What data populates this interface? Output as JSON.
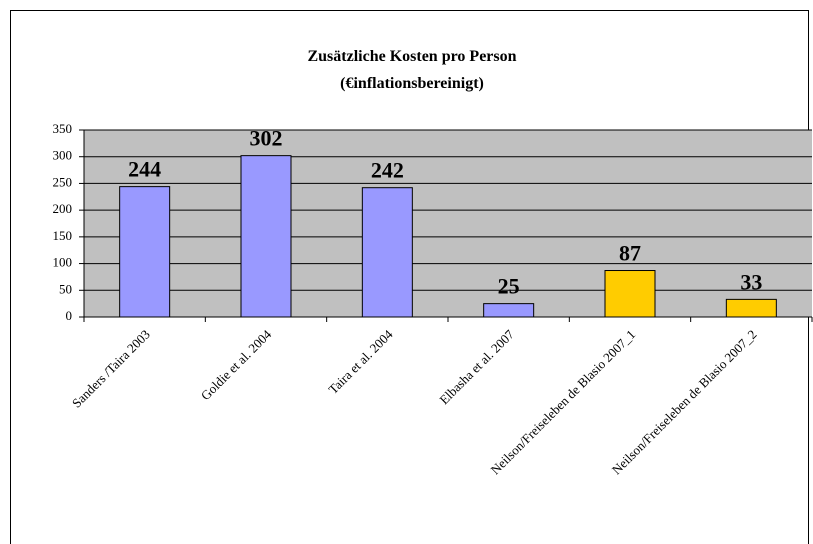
{
  "chart_data": {
    "type": "bar",
    "title": "Zusätzliche Kosten pro Person",
    "subtitle": "(€inflationsbereinigt)",
    "categories": [
      "Sanders /Taira 2003",
      "Goldie et al. 2004",
      "Taira et al. 2004",
      "Elbasha et al. 2007",
      "Neilson/Freiseleben de Blasio 2007_1",
      "Neilson/Freiseleben de Blasio 2007_2"
    ],
    "values": [
      244,
      302,
      242,
      25,
      87,
      33
    ],
    "colors": [
      "#9999ff",
      "#9999ff",
      "#9999ff",
      "#9999ff",
      "#ffcc00",
      "#ffcc00"
    ],
    "ylim": [
      0,
      350
    ],
    "yticks": [
      0,
      50,
      100,
      150,
      200,
      250,
      300,
      350
    ],
    "grid": true
  }
}
